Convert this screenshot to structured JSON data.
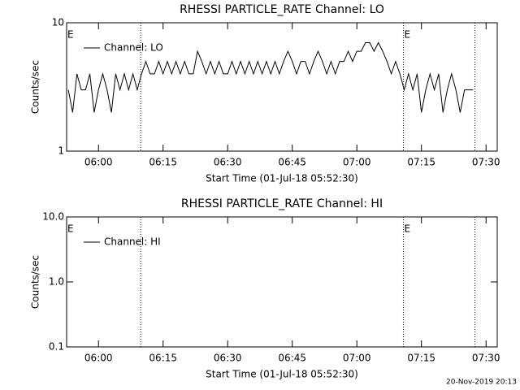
{
  "chart_data": [
    {
      "type": "line",
      "title": "RHESSI PARTICLE_RATE Channel: LO",
      "xlabel": "Start Time (01-Jul-18 05:52:30)",
      "ylabel": "Counts/sec",
      "x": [
        353,
        354,
        355,
        356,
        357,
        358,
        359,
        360,
        361,
        362,
        363,
        364,
        365,
        366,
        367,
        368,
        369,
        370,
        371,
        372,
        373,
        374,
        375,
        376,
        377,
        378,
        379,
        380,
        381,
        382,
        383,
        384,
        385,
        386,
        387,
        388,
        389,
        390,
        391,
        392,
        393,
        394,
        395,
        396,
        397,
        398,
        399,
        400,
        401,
        402,
        403,
        404,
        405,
        406,
        407,
        408,
        409,
        410,
        411,
        412,
        413,
        414,
        415,
        416,
        417,
        418,
        419,
        420,
        421,
        422,
        423,
        424,
        425,
        426,
        427,
        428,
        429,
        430,
        431,
        432,
        433,
        434,
        435,
        436,
        437,
        438,
        439,
        440,
        441,
        442,
        443,
        444,
        445,
        446,
        447
      ],
      "series": [
        {
          "name": "Channel: LO",
          "color": "#000000",
          "values": [
            3,
            2,
            4,
            3,
            3,
            4,
            2,
            3,
            4,
            3,
            2,
            4,
            3,
            4,
            3,
            4,
            3,
            4,
            5,
            4,
            4,
            5,
            4,
            5,
            4,
            5,
            4,
            5,
            4,
            4,
            6,
            5,
            4,
            5,
            4,
            5,
            4,
            4,
            5,
            4,
            5,
            4,
            5,
            4,
            5,
            4,
            5,
            4,
            5,
            4,
            5,
            6,
            5,
            4,
            5,
            5,
            4,
            5,
            6,
            5,
            4,
            5,
            4,
            5,
            5,
            6,
            5,
            6,
            6,
            7,
            7,
            6,
            7,
            6,
            5,
            4,
            5,
            4,
            3,
            4,
            3,
            4,
            2,
            3,
            4,
            3,
            4,
            2,
            3,
            4,
            3,
            2,
            3,
            3,
            3
          ]
        }
      ],
      "xlim": [
        352.6,
        452.6
      ],
      "xticks": [
        {
          "value": 360,
          "label": "06:00"
        },
        {
          "value": 375,
          "label": "06:15"
        },
        {
          "value": 390,
          "label": "06:30"
        },
        {
          "value": 405,
          "label": "06:45"
        },
        {
          "value": 420,
          "label": "07:00"
        },
        {
          "value": 435,
          "label": "07:15"
        },
        {
          "value": 450,
          "label": "07:30"
        }
      ],
      "ylim": [
        1,
        10
      ],
      "yticks": [
        1,
        10
      ],
      "log_y": true,
      "vlines": [
        369.8,
        430.8,
        447.4
      ],
      "annotations": [
        {
          "text": "E",
          "x": 352.6
        },
        {
          "text": "E",
          "x": 430.8
        }
      ],
      "legend": "upper left"
    },
    {
      "type": "line",
      "title": "RHESSI PARTICLE_RATE Channel: HI",
      "xlabel": "Start Time (01-Jul-18 05:52:30)",
      "ylabel": "Counts/sec",
      "x": [],
      "series": [
        {
          "name": "Channel: HI",
          "color": "#000000",
          "values": []
        }
      ],
      "xlim": [
        352.6,
        452.6
      ],
      "xticks": [
        {
          "value": 360,
          "label": "06:00"
        },
        {
          "value": 375,
          "label": "06:15"
        },
        {
          "value": 390,
          "label": "06:30"
        },
        {
          "value": 405,
          "label": "06:45"
        },
        {
          "value": 420,
          "label": "07:00"
        },
        {
          "value": 435,
          "label": "07:15"
        },
        {
          "value": 450,
          "label": "07:30"
        }
      ],
      "ylim": [
        0.1,
        10
      ],
      "yticks": [
        {
          "value": 0.1,
          "label": "0.1"
        },
        {
          "value": 1,
          "label": "1.0"
        },
        {
          "value": 10,
          "label": "10.0"
        }
      ],
      "log_y": true,
      "vlines": [
        369.8,
        430.8,
        447.4
      ],
      "annotations": [
        {
          "text": "E",
          "x": 352.6
        },
        {
          "text": "E",
          "x": 430.8
        }
      ],
      "legend": "upper left"
    }
  ],
  "footer": "20-Nov-2019 20:13"
}
